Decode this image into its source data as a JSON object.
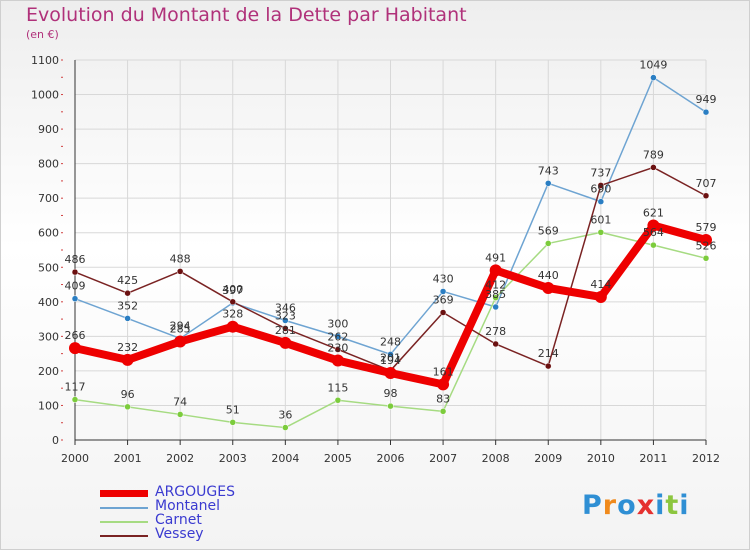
{
  "header": {
    "title": "Evolution du Montant de la Dette par Habitant",
    "unit": "(en €)"
  },
  "colors": {
    "title": "#b0317a",
    "legend_text": "#3b3bd0",
    "grid": "#d8d8d8",
    "axis": "#333333"
  },
  "logo": {
    "text": "Proxiti",
    "letters": [
      "P",
      "r",
      "o",
      "x",
      "i",
      "t",
      "i"
    ],
    "letter_colors": [
      "#2f8fd4",
      "#f08a1c",
      "#2f8fd4",
      "#e5312f",
      "#2f8fd4",
      "#8cc63f",
      "#2f8fd4"
    ]
  },
  "chart_data": {
    "type": "line",
    "title": "Evolution du Montant de la Dette par Habitant",
    "ylabel": "(en €)",
    "xlabel": "",
    "ylim": [
      0,
      1100
    ],
    "yticks": [
      0,
      100,
      200,
      300,
      400,
      500,
      600,
      700,
      800,
      900,
      1000,
      1100
    ],
    "grid": true,
    "legend_position": "bottom-left",
    "categories": [
      "2000",
      "2001",
      "2002",
      "2003",
      "2004",
      "2005",
      "2006",
      "2007",
      "2008",
      "2009",
      "2010",
      "2011",
      "2012"
    ],
    "series": [
      {
        "name": "ARGOUGES",
        "color": "#ee0000",
        "marker_color": "#ee0000",
        "emphasis": true,
        "values": [
          266,
          232,
          285,
          328,
          281,
          230,
          194,
          161,
          491,
          440,
          414,
          621,
          579
        ]
      },
      {
        "name": "Montanel",
        "color": "#6ea4d2",
        "marker_color": "#2a7ec3",
        "emphasis": false,
        "values": [
          409,
          352,
          294,
          397,
          346,
          300,
          248,
          430,
          385,
          743,
          690,
          1049,
          949
        ]
      },
      {
        "name": "Carnet",
        "color": "#a6db82",
        "marker_color": "#7ccc3c",
        "emphasis": false,
        "values": [
          117,
          96,
          74,
          51,
          36,
          115,
          98,
          83,
          412,
          569,
          601,
          564,
          526
        ]
      },
      {
        "name": "Vessey",
        "color": "#7a2323",
        "marker_color": "#6b1010",
        "emphasis": false,
        "values": [
          486,
          425,
          488,
          400,
          323,
          262,
          201,
          369,
          278,
          214,
          737,
          789,
          707
        ]
      }
    ]
  }
}
